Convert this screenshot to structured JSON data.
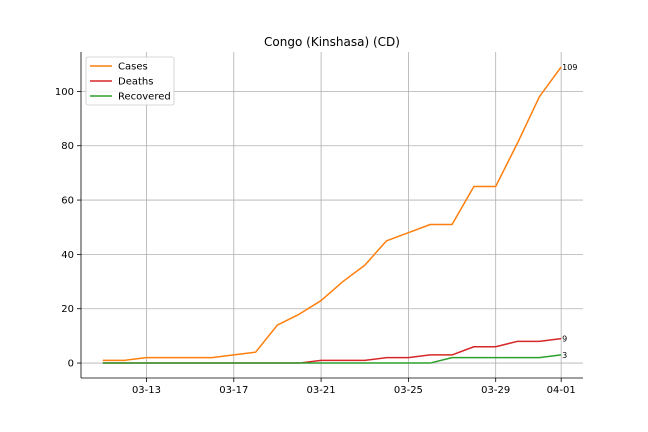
{
  "chart_data": {
    "type": "line",
    "title": "Congo (Kinshasa) (CD)",
    "xlabel": "",
    "ylabel": "",
    "x_ticks": [
      "03-13",
      "03-17",
      "03-21",
      "03-25",
      "03-29",
      "04-01"
    ],
    "x_tick_dates": [
      "2020-03-13",
      "2020-03-17",
      "2020-03-21",
      "2020-03-25",
      "2020-03-29",
      "2020-04-01"
    ],
    "x_range": [
      "2020-03-10",
      "2020-04-02"
    ],
    "y_ticks": [
      0,
      20,
      40,
      60,
      80,
      100
    ],
    "ylim": [
      -5.5,
      114.5
    ],
    "grid": true,
    "legend_position": "top-left",
    "x": [
      "2020-03-11",
      "2020-03-12",
      "2020-03-13",
      "2020-03-14",
      "2020-03-15",
      "2020-03-16",
      "2020-03-17",
      "2020-03-18",
      "2020-03-19",
      "2020-03-20",
      "2020-03-21",
      "2020-03-22",
      "2020-03-23",
      "2020-03-24",
      "2020-03-25",
      "2020-03-26",
      "2020-03-27",
      "2020-03-28",
      "2020-03-29",
      "2020-03-30",
      "2020-03-31",
      "2020-04-01"
    ],
    "series": [
      {
        "name": "Cases",
        "color": "#ff7f0e",
        "values": [
          1,
          1,
          2,
          2,
          2,
          2,
          3,
          4,
          14,
          18,
          23,
          30,
          36,
          45,
          48,
          51,
          51,
          65,
          65,
          81,
          98,
          109
        ],
        "end_label": "109"
      },
      {
        "name": "Deaths",
        "color": "#d62728",
        "values": [
          0,
          0,
          0,
          0,
          0,
          0,
          0,
          0,
          0,
          0,
          1,
          1,
          1,
          2,
          2,
          3,
          3,
          6,
          6,
          8,
          8,
          9
        ],
        "end_label": "9"
      },
      {
        "name": "Recovered",
        "color": "#2ca02c",
        "values": [
          0,
          0,
          0,
          0,
          0,
          0,
          0,
          0,
          0,
          0,
          0,
          0,
          0,
          0,
          0,
          0,
          2,
          2,
          2,
          2,
          2,
          3
        ],
        "end_label": "3"
      }
    ]
  }
}
